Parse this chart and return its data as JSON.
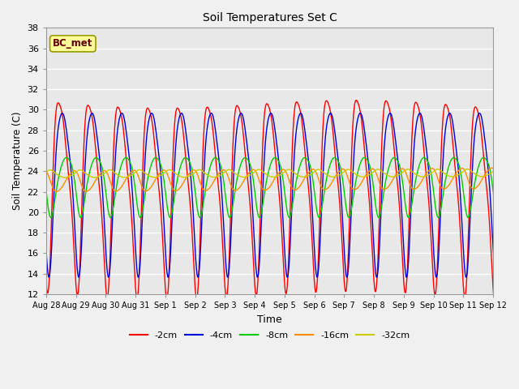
{
  "title": "Soil Temperatures Set C",
  "xlabel": "Time",
  "ylabel": "Soil Temperature (C)",
  "ylim": [
    12,
    38
  ],
  "yticks": [
    12,
    14,
    16,
    18,
    20,
    22,
    24,
    26,
    28,
    30,
    32,
    34,
    36,
    38
  ],
  "legend_label": "BC_met",
  "series_labels": [
    "-2cm",
    "-4cm",
    "-8cm",
    "-16cm",
    "-32cm"
  ],
  "series_colors": [
    "#FF0000",
    "#0000DD",
    "#00CC00",
    "#FF8C00",
    "#CCCC00"
  ],
  "x_tick_labels": [
    "Aug 28",
    "Aug 29",
    "Aug 30",
    "Aug 31",
    "Sep 1",
    "Sep 2",
    "Sep 3",
    "Sep 4",
    "Sep 5",
    "Sep 6",
    "Sep 7",
    "Sep 8",
    "Sep 9",
    "Sep 10",
    "Sep 11",
    "Sep 12"
  ],
  "plot_bg_color": "#E8E8E8",
  "fig_bg_color": "#F0F0F0",
  "grid_color": "#FFFFFF"
}
